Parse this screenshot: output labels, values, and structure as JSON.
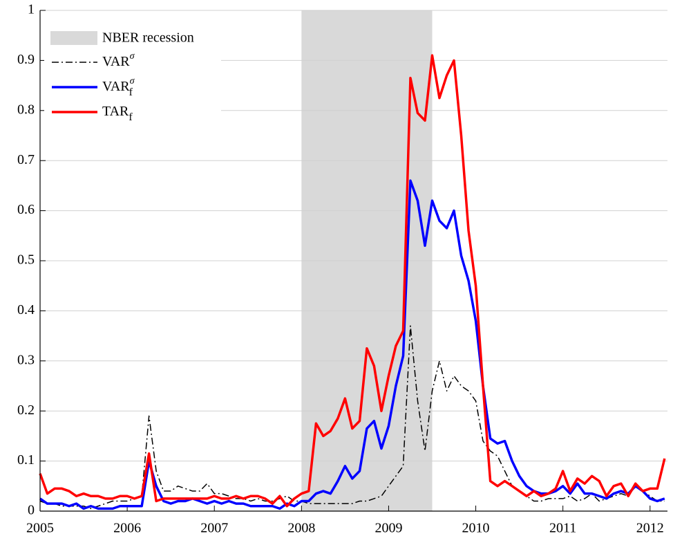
{
  "chart_data": {
    "type": "line",
    "xlim": [
      2005,
      2012.2
    ],
    "ylim": [
      0,
      1
    ],
    "xticks": [
      2005,
      2006,
      2007,
      2008,
      2009,
      2010,
      2011,
      2012
    ],
    "yticks": [
      0,
      0.1,
      0.2,
      0.3,
      0.4,
      0.5,
      0.6,
      0.7,
      0.8,
      0.9,
      1
    ],
    "grid": true,
    "legend": "upper left",
    "shade": {
      "name": "NBER recession",
      "x": [
        2008,
        2009.5
      ],
      "color": "#d9d9d9"
    },
    "x": [
      2005,
      2005.083,
      2005.167,
      2005.25,
      2005.333,
      2005.417,
      2005.5,
      2005.583,
      2005.667,
      2005.75,
      2005.833,
      2005.917,
      2006,
      2006.083,
      2006.167,
      2006.25,
      2006.333,
      2006.417,
      2006.5,
      2006.583,
      2006.667,
      2006.75,
      2006.833,
      2006.917,
      2007,
      2007.083,
      2007.167,
      2007.25,
      2007.333,
      2007.417,
      2007.5,
      2007.583,
      2007.667,
      2007.75,
      2007.833,
      2007.917,
      2008,
      2008.083,
      2008.167,
      2008.25,
      2008.333,
      2008.417,
      2008.5,
      2008.583,
      2008.667,
      2008.75,
      2008.833,
      2008.917,
      2009,
      2009.083,
      2009.167,
      2009.25,
      2009.333,
      2009.417,
      2009.5,
      2009.583,
      2009.667,
      2009.75,
      2009.833,
      2009.917,
      2010,
      2010.083,
      2010.167,
      2010.25,
      2010.333,
      2010.417,
      2010.5,
      2010.583,
      2010.667,
      2010.75,
      2010.833,
      2010.917,
      2011,
      2011.083,
      2011.167,
      2011.25,
      2011.333,
      2011.417,
      2011.5,
      2011.583,
      2011.667,
      2011.75,
      2011.833,
      2011.917,
      2012,
      2012.083,
      2012.167
    ],
    "series": [
      {
        "name": "VAR",
        "superscript": "σ",
        "color": "#000000",
        "dash": "dashdot",
        "width": 1.5,
        "values": [
          0.02,
          0.015,
          0.015,
          0.01,
          0.01,
          0.01,
          0.01,
          0.005,
          0.01,
          0.015,
          0.02,
          0.02,
          0.02,
          0.025,
          0.03,
          0.19,
          0.08,
          0.04,
          0.04,
          0.05,
          0.045,
          0.04,
          0.04,
          0.055,
          0.035,
          0.035,
          0.03,
          0.025,
          0.025,
          0.02,
          0.025,
          0.02,
          0.02,
          0.025,
          0.03,
          0.02,
          0.02,
          0.015,
          0.015,
          0.015,
          0.015,
          0.015,
          0.015,
          0.015,
          0.02,
          0.02,
          0.025,
          0.03,
          0.05,
          0.07,
          0.09,
          0.37,
          0.22,
          0.12,
          0.24,
          0.3,
          0.24,
          0.27,
          0.25,
          0.24,
          0.22,
          0.14,
          0.12,
          0.11,
          0.08,
          0.05,
          0.04,
          0.03,
          0.02,
          0.02,
          0.025,
          0.025,
          0.025,
          0.03,
          0.02,
          0.025,
          0.035,
          0.02,
          0.025,
          0.03,
          0.035,
          0.03,
          0.05,
          0.04,
          0.03,
          0.02,
          0.02
        ]
      },
      {
        "name": "VAR",
        "superscript": "σ",
        "subscript": "f",
        "color": "#0000ff",
        "width": 3.5,
        "values": [
          0.025,
          0.015,
          0.015,
          0.015,
          0.01,
          0.015,
          0.005,
          0.01,
          0.005,
          0.005,
          0.005,
          0.01,
          0.01,
          0.01,
          0.01,
          0.1,
          0.05,
          0.02,
          0.015,
          0.02,
          0.02,
          0.025,
          0.02,
          0.015,
          0.02,
          0.015,
          0.02,
          0.015,
          0.015,
          0.01,
          0.01,
          0.01,
          0.01,
          0.005,
          0.015,
          0.01,
          0.02,
          0.02,
          0.035,
          0.04,
          0.035,
          0.06,
          0.09,
          0.065,
          0.08,
          0.165,
          0.18,
          0.125,
          0.17,
          0.25,
          0.31,
          0.66,
          0.62,
          0.53,
          0.62,
          0.58,
          0.565,
          0.6,
          0.51,
          0.46,
          0.38,
          0.25,
          0.145,
          0.135,
          0.14,
          0.1,
          0.07,
          0.05,
          0.04,
          0.035,
          0.035,
          0.04,
          0.05,
          0.035,
          0.055,
          0.035,
          0.035,
          0.03,
          0.025,
          0.035,
          0.04,
          0.035,
          0.05,
          0.04,
          0.025,
          0.02,
          0.025
        ]
      },
      {
        "name": "TAR",
        "subscript": "f",
        "color": "#ff0000",
        "width": 3.5,
        "values": [
          0.075,
          0.035,
          0.045,
          0.045,
          0.04,
          0.03,
          0.035,
          0.03,
          0.03,
          0.025,
          0.025,
          0.03,
          0.03,
          0.025,
          0.03,
          0.115,
          0.02,
          0.025,
          0.025,
          0.025,
          0.025,
          0.025,
          0.025,
          0.025,
          0.03,
          0.025,
          0.025,
          0.03,
          0.025,
          0.03,
          0.03,
          0.025,
          0.015,
          0.03,
          0.01,
          0.025,
          0.035,
          0.04,
          0.175,
          0.15,
          0.16,
          0.185,
          0.225,
          0.165,
          0.18,
          0.325,
          0.29,
          0.2,
          0.27,
          0.33,
          0.36,
          0.865,
          0.795,
          0.78,
          0.91,
          0.825,
          0.87,
          0.9,
          0.75,
          0.56,
          0.45,
          0.25,
          0.06,
          0.05,
          0.06,
          0.05,
          0.04,
          0.03,
          0.04,
          0.03,
          0.035,
          0.045,
          0.08,
          0.04,
          0.065,
          0.055,
          0.07,
          0.06,
          0.03,
          0.05,
          0.055,
          0.03,
          0.055,
          0.04,
          0.045,
          0.045,
          0.105
        ]
      }
    ]
  }
}
